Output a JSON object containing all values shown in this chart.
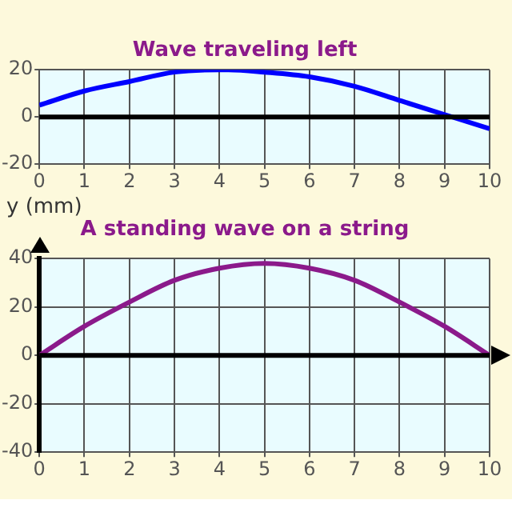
{
  "chart_data": [
    {
      "type": "line",
      "title": "Wave traveling left",
      "x": [
        0,
        1,
        2,
        3,
        4,
        4.2,
        5,
        6,
        7,
        8,
        9,
        10
      ],
      "series": [
        {
          "color": "#0000ff",
          "values": [
            5,
            11,
            15,
            19,
            20,
            20,
            19,
            17,
            13,
            7,
            1,
            -5
          ]
        }
      ],
      "xlim": [
        0,
        10
      ],
      "xticks": [
        0,
        1,
        2,
        3,
        4,
        5,
        6,
        7,
        8,
        9,
        10
      ],
      "ylim": [
        -20,
        20
      ],
      "yticks": [
        -20,
        0,
        20
      ],
      "grid": true,
      "legend": false,
      "marker": "none",
      "line_style": "solid",
      "ref_lines": [
        {
          "axis": "y",
          "value": 0,
          "color": "#000000"
        }
      ]
    },
    {
      "type": "line",
      "title": "A standing wave on a string",
      "ylabel": "y (mm)",
      "x": [
        0,
        1,
        2,
        3,
        4,
        5,
        6,
        7,
        8,
        9,
        10
      ],
      "series": [
        {
          "color": "#8b1a8b",
          "values": [
            0,
            12,
            22,
            31,
            36,
            38,
            36,
            31,
            22,
            12,
            0
          ]
        }
      ],
      "xlim": [
        0,
        10
      ],
      "xticks": [
        0,
        1,
        2,
        3,
        4,
        5,
        6,
        7,
        8,
        9,
        10
      ],
      "ylim": [
        -40,
        40
      ],
      "yticks": [
        -40,
        -20,
        0,
        20,
        40
      ],
      "grid": true,
      "legend": false,
      "marker": "none",
      "line_style": "solid",
      "ref_lines": [
        {
          "axis": "y",
          "value": 0,
          "color": "#000000"
        }
      ]
    }
  ]
}
